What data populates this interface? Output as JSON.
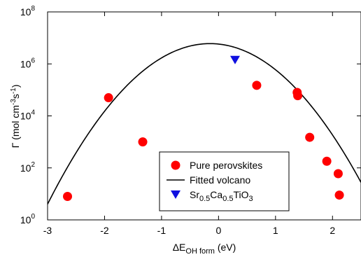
{
  "chart_data": {
    "type": "scatter",
    "xlabel": {
      "main": "ΔE",
      "sub": "OH form",
      "unit": " (eV)"
    },
    "ylabel": {
      "main": "Γ (mol cm",
      "sup1": "-3",
      "mid": "s",
      "sup2": "-1",
      "end": ")"
    },
    "xlim": [
      -3,
      2.5
    ],
    "ylim_log10": [
      0,
      8
    ],
    "y_scale": "log",
    "grid": false,
    "legend_placement": "lower-right",
    "x_ticks": [
      {
        "value": -3,
        "label": "-3"
      },
      {
        "value": -2,
        "label": "-2"
      },
      {
        "value": -1,
        "label": "-1"
      },
      {
        "value": 0,
        "label": "0"
      },
      {
        "value": 1,
        "label": "1"
      },
      {
        "value": 2,
        "label": "2"
      }
    ],
    "y_ticks": [
      {
        "exp": 0,
        "base": "10",
        "sup": "0"
      },
      {
        "exp": 2,
        "base": "10",
        "sup": "2"
      },
      {
        "exp": 4,
        "base": "10",
        "sup": "4"
      },
      {
        "exp": 6,
        "base": "10",
        "sup": "6"
      },
      {
        "exp": 8,
        "base": "10",
        "sup": "8"
      }
    ],
    "series": [
      {
        "name": "Pure perovskites",
        "marker": "circle",
        "color": "#ff0000",
        "points": [
          {
            "x": -2.65,
            "y": 8
          },
          {
            "x": -1.93,
            "y": 50000
          },
          {
            "x": -1.33,
            "y": 1000
          },
          {
            "x": 0.67,
            "y": 150000
          },
          {
            "x": 1.38,
            "y": 80000
          },
          {
            "x": 1.39,
            "y": 60000
          },
          {
            "x": 1.6,
            "y": 1500
          },
          {
            "x": 1.9,
            "y": 180
          },
          {
            "x": 2.1,
            "y": 60
          },
          {
            "x": 2.12,
            "y": 9
          }
        ]
      },
      {
        "name": "Fitted volcano",
        "marker": "line",
        "color": "#000000",
        "curve": {
          "peak_x": -0.15,
          "peak_log10_y": 6.78,
          "curvature": 0.76
        }
      },
      {
        "name_parts": [
          "Sr",
          "0.5",
          "Ca",
          "0.5",
          "TiO",
          "3"
        ],
        "marker": "triangle-down",
        "color": "#1010e0",
        "points": [
          {
            "x": 0.29,
            "y": 1500000
          }
        ]
      }
    ],
    "legend": {
      "entries": [
        {
          "marker": "circle",
          "color": "#ff0000",
          "label": "Pure perovskites"
        },
        {
          "marker": "line",
          "color": "#000000",
          "label": "Fitted volcano"
        },
        {
          "marker": "triangle-down",
          "color": "#1010e0",
          "label_parts": [
            "Sr",
            "0.5",
            "Ca",
            "0.5",
            "TiO",
            "3"
          ]
        }
      ]
    }
  }
}
